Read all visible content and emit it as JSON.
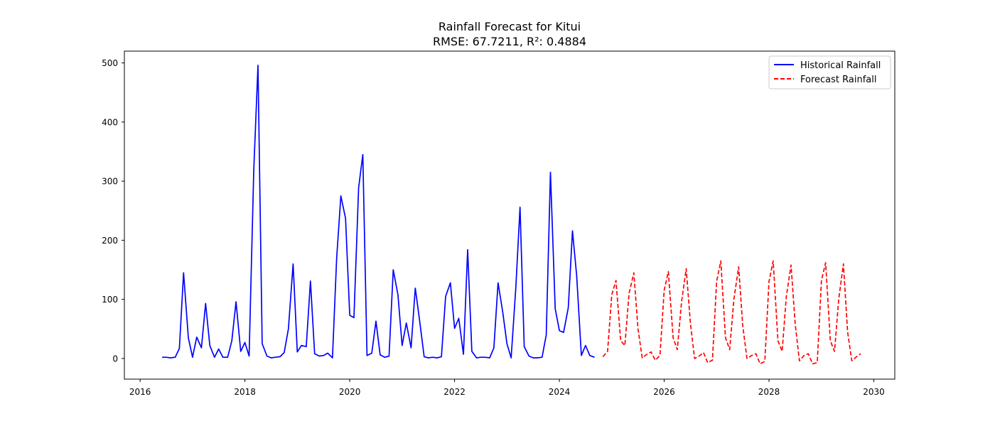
{
  "chart_data": {
    "type": "line",
    "title": "Rainfall Forecast for Kitui",
    "subtitle": "RMSE: 67.7211, R²: 0.4884",
    "xlabel": "",
    "ylabel": "",
    "xlim": [
      2015.7,
      2030.4
    ],
    "ylim": [
      -35,
      520
    ],
    "xticks": [
      2016,
      2018,
      2020,
      2022,
      2024,
      2026,
      2028,
      2030
    ],
    "xtick_labels": [
      "2016",
      "2018",
      "2020",
      "2022",
      "2024",
      "2026",
      "2028",
      "2030"
    ],
    "yticks": [
      0,
      100,
      200,
      300,
      400,
      500
    ],
    "ytick_labels": [
      "0",
      "100",
      "200",
      "300",
      "400",
      "500"
    ],
    "legend_position": "top-right",
    "series": [
      {
        "name": "Historical Rainfall",
        "color": "#0000ff",
        "style": "solid",
        "x": [
          2016.42,
          2016.5,
          2016.58,
          2016.67,
          2016.75,
          2016.83,
          2016.92,
          2017.0,
          2017.08,
          2017.17,
          2017.25,
          2017.33,
          2017.42,
          2017.5,
          2017.58,
          2017.67,
          2017.75,
          2017.83,
          2017.92,
          2018.0,
          2018.08,
          2018.17,
          2018.25,
          2018.33,
          2018.42,
          2018.5,
          2018.58,
          2018.67,
          2018.75,
          2018.83,
          2018.92,
          2019.0,
          2019.08,
          2019.17,
          2019.25,
          2019.33,
          2019.42,
          2019.5,
          2019.58,
          2019.67,
          2019.75,
          2019.83,
          2019.92,
          2020.0,
          2020.08,
          2020.17,
          2020.25,
          2020.33,
          2020.42,
          2020.5,
          2020.58,
          2020.67,
          2020.75,
          2020.83,
          2020.92,
          2021.0,
          2021.08,
          2021.17,
          2021.25,
          2021.33,
          2021.42,
          2021.5,
          2021.58,
          2021.67,
          2021.75,
          2021.83,
          2021.92,
          2022.0,
          2022.08,
          2022.17,
          2022.25,
          2022.33,
          2022.42,
          2022.5,
          2022.58,
          2022.67,
          2022.75,
          2022.83,
          2022.92,
          2023.0,
          2023.08,
          2023.17,
          2023.25,
          2023.33,
          2023.42,
          2023.5,
          2023.58,
          2023.67,
          2023.75,
          2023.83,
          2023.92,
          2024.0,
          2024.08,
          2024.17,
          2024.25,
          2024.33,
          2024.42,
          2024.5,
          2024.58,
          2024.67
        ],
        "values": [
          2,
          2,
          1,
          2,
          17,
          145,
          35,
          2,
          36,
          18,
          93,
          22,
          2,
          16,
          2,
          2,
          30,
          96,
          12,
          27,
          4,
          320,
          496,
          25,
          4,
          1,
          2,
          3,
          10,
          50,
          160,
          11,
          22,
          20,
          131,
          8,
          4,
          5,
          9,
          1,
          170,
          275,
          237,
          73,
          69,
          289,
          345,
          5,
          9,
          63,
          6,
          2,
          4,
          150,
          108,
          22,
          60,
          18,
          119,
          66,
          3,
          1,
          2,
          1,
          3,
          105,
          128,
          51,
          68,
          7,
          184,
          12,
          1,
          2,
          2,
          1,
          18,
          128,
          78,
          25,
          1,
          120,
          256,
          20,
          4,
          1,
          1,
          2,
          40,
          315,
          84,
          47,
          44,
          86,
          216,
          140,
          5,
          22,
          5,
          2
        ]
      },
      {
        "name": "Forecast Rainfall",
        "color": "#ff0000",
        "style": "dashed",
        "x": [
          2024.83,
          2024.92,
          2025.0,
          2025.08,
          2025.17,
          2025.25,
          2025.33,
          2025.42,
          2025.5,
          2025.58,
          2025.67,
          2025.75,
          2025.83,
          2025.92,
          2026.0,
          2026.08,
          2026.17,
          2026.25,
          2026.33,
          2026.42,
          2026.5,
          2026.58,
          2026.67,
          2026.75,
          2026.83,
          2026.92,
          2027.0,
          2027.08,
          2027.17,
          2027.25,
          2027.33,
          2027.42,
          2027.5,
          2027.58,
          2027.67,
          2027.75,
          2027.83,
          2027.92,
          2028.0,
          2028.08,
          2028.17,
          2028.25,
          2028.33,
          2028.42,
          2028.5,
          2028.58,
          2028.67,
          2028.75,
          2028.83,
          2028.92,
          2029.0,
          2029.08,
          2029.17,
          2029.25,
          2029.33,
          2029.42,
          2029.5,
          2029.58,
          2029.67,
          2029.75
        ],
        "values": [
          3,
          12,
          108,
          132,
          30,
          22,
          110,
          145,
          50,
          1,
          7,
          11,
          -3,
          5,
          115,
          147,
          35,
          15,
          95,
          152,
          60,
          0,
          4,
          10,
          -7,
          -3,
          130,
          165,
          35,
          15,
          100,
          155,
          55,
          0,
          5,
          8,
          -9,
          -5,
          130,
          165,
          30,
          12,
          105,
          158,
          58,
          -4,
          5,
          8,
          -9,
          -7,
          132,
          162,
          30,
          12,
          100,
          160,
          45,
          -4,
          3,
          8
        ]
      }
    ]
  }
}
